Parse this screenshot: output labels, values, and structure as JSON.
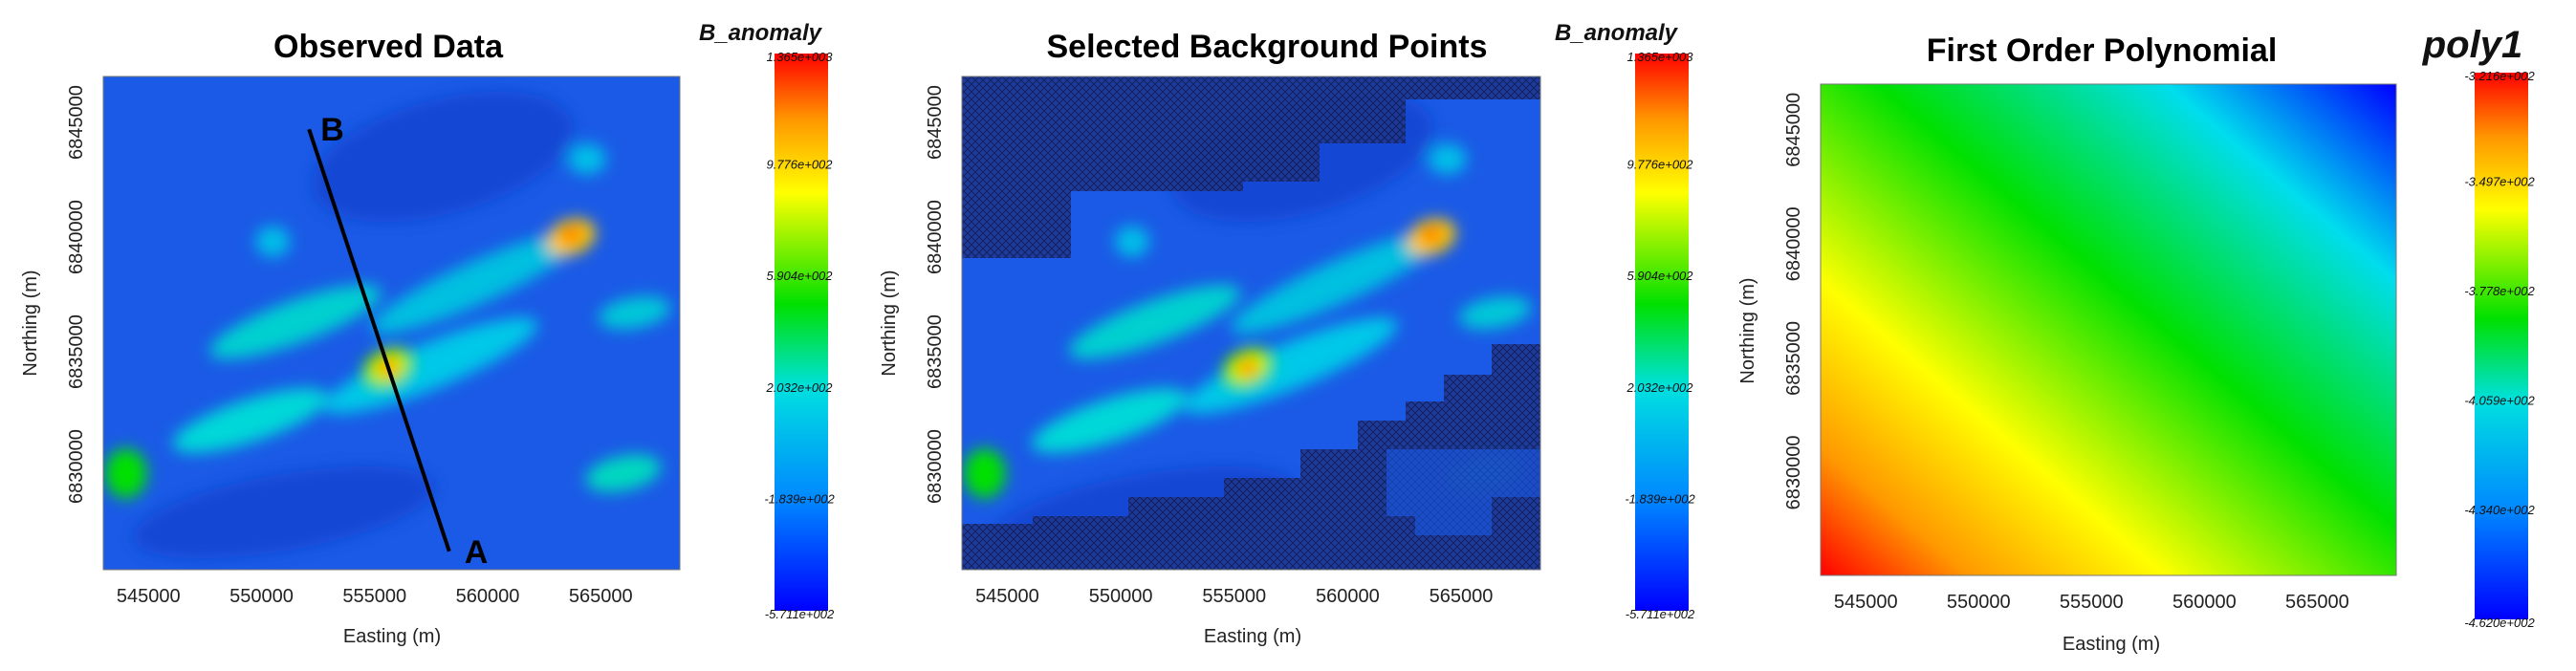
{
  "chart_data": [
    {
      "type": "heatmap",
      "title": "Observed Data",
      "xlabel": "Easting (m)",
      "ylabel": "Northing (m)",
      "xlim": [
        543000,
        568500
      ],
      "ylim": [
        6825500,
        6847000
      ],
      "xticks": [
        545000,
        550000,
        555000,
        560000,
        565000
      ],
      "xtick_labels": [
        "545000",
        "550000",
        "555000",
        "560000",
        "565000"
      ],
      "yticks": [
        6830000,
        6835000,
        6840000,
        6845000
      ],
      "ytick_labels": [
        "6830000",
        "6835000",
        "6840000",
        "6845000"
      ],
      "colorbar": {
        "title": "B_anomaly",
        "ticks": [
          1365,
          977.6,
          590.4,
          203.2,
          -183.9,
          -571.1
        ],
        "tick_labels": [
          "1.365e+003",
          "9.776e+002",
          "5.904e+002",
          "2.032e+002",
          "-1.839e+002",
          "-5.711e+002"
        ],
        "range": [
          -571.1,
          1365
        ]
      },
      "profile_line": {
        "start": {
          "label": "A",
          "x": 558300,
          "y": 6826300
        },
        "end": {
          "label": "B",
          "x": 552100,
          "y": 6844700
        }
      },
      "anomalies": [
        {
          "x": 555600,
          "y": 6834200,
          "value": 1365
        },
        {
          "x": 563900,
          "y": 6840200,
          "value": 900
        },
        {
          "x": 564500,
          "y": 6843300,
          "value": 250
        }
      ]
    },
    {
      "type": "heatmap",
      "title": "Selected Background Points",
      "xlabel": "Easting (m)",
      "ylabel": "Northing (m)",
      "xlim": [
        543000,
        568500
      ],
      "ylim": [
        6825500,
        6847000
      ],
      "xticks": [
        545000,
        550000,
        555000,
        560000,
        565000
      ],
      "xtick_labels": [
        "545000",
        "550000",
        "555000",
        "560000",
        "565000"
      ],
      "yticks": [
        6830000,
        6835000,
        6840000,
        6845000
      ],
      "ytick_labels": [
        "6830000",
        "6835000",
        "6840000",
        "6845000"
      ],
      "colorbar": {
        "title": "B_anomaly",
        "ticks": [
          1365,
          977.6,
          590.4,
          203.2,
          -183.9,
          -571.1
        ],
        "tick_labels": [
          "1.365e+003",
          "9.776e+002",
          "5.904e+002",
          "2.032e+002",
          "-1.839e+002",
          "-5.711e+002"
        ],
        "range": [
          -571.1,
          1365
        ]
      }
    },
    {
      "type": "heatmap",
      "title": "First Order Polynomial",
      "xlabel": "Easting (m)",
      "ylabel": "Northing (m)",
      "xlim": [
        543000,
        568500
      ],
      "ylim": [
        6825500,
        6847000
      ],
      "xticks": [
        545000,
        550000,
        555000,
        560000,
        565000
      ],
      "xtick_labels": [
        "545000",
        "550000",
        "555000",
        "560000",
        "565000"
      ],
      "yticks": [
        6830000,
        6835000,
        6840000,
        6845000
      ],
      "ytick_labels": [
        "6830000",
        "6835000",
        "6840000",
        "6845000"
      ],
      "colorbar": {
        "title": "poly1",
        "ticks": [
          -321.6,
          -349.7,
          -377.8,
          -405.9,
          -434.0,
          -462.0
        ],
        "tick_labels": [
          "-3.216e+002",
          "-3.497e+002",
          "-3.778e+002",
          "-4.059e+002",
          "-4.340e+002",
          "-4.620e+002"
        ],
        "range": [
          -462.0,
          -321.6
        ]
      },
      "surface": {
        "min_corner": "top-right",
        "max_corner": "bottom-left",
        "min": -462.0,
        "max": -321.6
      }
    }
  ],
  "colors": {
    "low": "#0000ff",
    "background": "#1a5ae6",
    "mid": "#00e000",
    "high": "#ff0000",
    "profile_line": "#000000",
    "mask": "#1a2f7a"
  }
}
